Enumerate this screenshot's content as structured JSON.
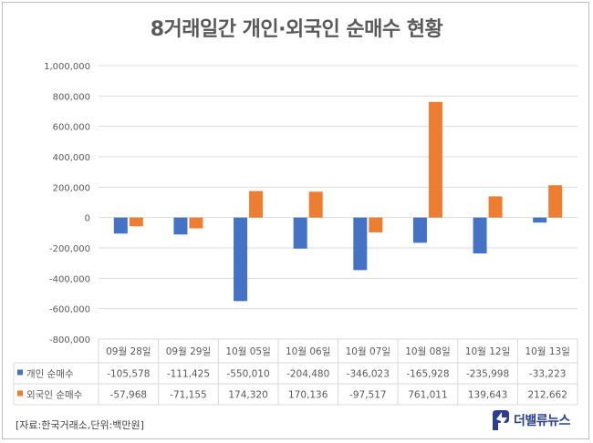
{
  "chart_data": {
    "type": "bar",
    "title": "8거래일간 개인·외국인 순매수 현황",
    "categories": [
      "09월 28일",
      "09월 29일",
      "10월 05일",
      "10월 06일",
      "10월 07일",
      "10월 08일",
      "10월 12일",
      "10월 13일"
    ],
    "series": [
      {
        "name": "개인 순매수",
        "color": "#4472c4",
        "values": [
          -105578,
          -111425,
          -550010,
          -204480,
          -346023,
          -165928,
          -235998,
          -33223
        ],
        "labels": [
          "-105,578",
          "-111,425",
          "-550,010",
          "-204,480",
          "-346,023",
          "-165,928",
          "-235,998",
          "-33,223"
        ]
      },
      {
        "name": "외국인 순매수",
        "color": "#ed7d31",
        "values": [
          -57968,
          -71155,
          174320,
          170136,
          -97517,
          761011,
          139643,
          212662
        ],
        "labels": [
          "-57,968",
          "-71,155",
          "174,320",
          "170,136",
          "-97,517",
          "761,011",
          "139,643",
          "212,662"
        ]
      }
    ],
    "ylim": [
      -800000,
      1000000
    ],
    "yticks": [
      1000000,
      800000,
      600000,
      400000,
      200000,
      0,
      -200000,
      -400000,
      -600000,
      -800000
    ],
    "ytick_labels": [
      "1,000,000",
      "800,000",
      "600,000",
      "400,000",
      "200,000",
      "0",
      "-200,000",
      "-400,000",
      "-600,000",
      "-800,000"
    ],
    "grid": true,
    "legend": "data-table",
    "source_note": "[자료:한국거래소,단위:백만원]"
  },
  "logo": {
    "text": "더밸류뉴스"
  }
}
